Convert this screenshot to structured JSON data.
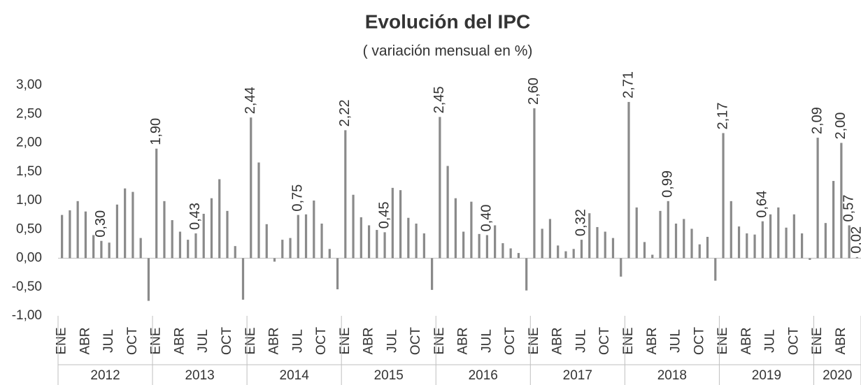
{
  "chart_data": {
    "type": "bar",
    "title": "Evolución del IPC",
    "subtitle": "( variación mensual en %)",
    "color": "#8a8a8a",
    "categories": [
      "ENE",
      null,
      null,
      "ABR",
      null,
      null,
      "JUL",
      null,
      null,
      "OCT",
      null,
      null,
      "ENE",
      null,
      null,
      "ABR",
      null,
      null,
      "JUL",
      null,
      null,
      "OCT",
      null,
      null,
      "ENE",
      null,
      null,
      "ABR",
      null,
      null,
      "JUL",
      null,
      null,
      "OCT",
      null,
      null,
      "ENE",
      null,
      null,
      "ABR",
      null,
      null,
      "JUL",
      null,
      null,
      "OCT",
      null,
      null,
      "ENE",
      null,
      null,
      "ABR",
      null,
      null,
      "JUL",
      null,
      null,
      "OCT",
      null,
      null,
      "ENE",
      null,
      null,
      "ABR",
      null,
      null,
      "JUL",
      null,
      null,
      "OCT",
      null,
      null,
      "ENE",
      null,
      null,
      "ABR",
      null,
      null,
      "JUL",
      null,
      null,
      "OCT",
      null,
      null,
      "ENE",
      null,
      null,
      "ABR",
      null,
      null,
      "JUL",
      null,
      null,
      "OCT",
      null,
      null,
      "ENE",
      null,
      null,
      "ABR",
      null,
      null
    ],
    "groups": [
      {
        "name": "2012",
        "months": 12
      },
      {
        "name": "2013",
        "months": 12
      },
      {
        "name": "2014",
        "months": 12
      },
      {
        "name": "2015",
        "months": 12
      },
      {
        "name": "2016",
        "months": 12
      },
      {
        "name": "2017",
        "months": 12
      },
      {
        "name": "2018",
        "months": 12
      },
      {
        "name": "2019",
        "months": 12
      },
      {
        "name": "2020",
        "months": 6
      }
    ],
    "values": [
      0.75,
      0.83,
      0.99,
      0.81,
      0.4,
      0.3,
      0.27,
      0.93,
      1.21,
      1.15,
      0.35,
      -0.74,
      1.9,
      0.99,
      0.66,
      0.46,
      0.32,
      0.43,
      0.77,
      1.04,
      1.37,
      0.82,
      0.21,
      -0.72,
      2.44,
      1.66,
      0.59,
      -0.06,
      0.32,
      0.35,
      0.75,
      0.76,
      1.0,
      0.6,
      0.16,
      -0.54,
      2.22,
      1.1,
      0.71,
      0.57,
      0.49,
      0.45,
      1.22,
      1.18,
      0.7,
      0.6,
      0.43,
      -0.55,
      2.45,
      1.6,
      1.04,
      0.46,
      0.98,
      0.42,
      0.4,
      0.57,
      0.26,
      0.17,
      0.09,
      -0.56,
      2.6,
      0.51,
      0.68,
      0.22,
      0.12,
      0.16,
      0.32,
      0.78,
      0.54,
      0.46,
      0.35,
      -0.32,
      2.71,
      0.88,
      0.28,
      0.06,
      0.82,
      0.99,
      0.6,
      0.68,
      0.51,
      0.24,
      0.37,
      -0.39,
      2.17,
      0.99,
      0.55,
      0.43,
      0.41,
      0.64,
      0.76,
      0.88,
      0.53,
      0.76,
      0.43,
      -0.03,
      2.09,
      0.61,
      1.34,
      2.0,
      0.57,
      0.02
    ],
    "value_labels": [
      null,
      null,
      null,
      null,
      null,
      "0,30",
      null,
      null,
      null,
      null,
      null,
      null,
      "1,90",
      null,
      null,
      null,
      null,
      "0,43",
      null,
      null,
      null,
      null,
      null,
      null,
      "2,44",
      null,
      null,
      null,
      null,
      null,
      "0,75",
      null,
      null,
      null,
      null,
      null,
      "2,22",
      null,
      null,
      null,
      null,
      "0,45",
      null,
      null,
      null,
      null,
      null,
      null,
      "2,45",
      null,
      null,
      null,
      null,
      null,
      "0,40",
      null,
      null,
      null,
      null,
      null,
      "2,60",
      null,
      null,
      null,
      null,
      null,
      "0,32",
      null,
      null,
      null,
      null,
      null,
      "2,71",
      null,
      null,
      null,
      null,
      "0,99",
      null,
      null,
      null,
      null,
      null,
      null,
      "2,17",
      null,
      null,
      null,
      null,
      "0,64",
      null,
      null,
      null,
      null,
      null,
      null,
      "2,09",
      null,
      null,
      "2,00",
      "0,57",
      "0,02"
    ],
    "ylim": [
      -1,
      3
    ],
    "yticks": [
      {
        "value": -1,
        "label": "-1,00"
      },
      {
        "value": -0.5,
        "label": "-0,50"
      },
      {
        "value": 0,
        "label": "0,00"
      },
      {
        "value": 0.5,
        "label": "0,50"
      },
      {
        "value": 1,
        "label": "1,00"
      },
      {
        "value": 1.5,
        "label": "1,50"
      },
      {
        "value": 2,
        "label": "2,00"
      },
      {
        "value": 2.5,
        "label": "2,50"
      },
      {
        "value": 3,
        "label": "3,00"
      }
    ]
  }
}
